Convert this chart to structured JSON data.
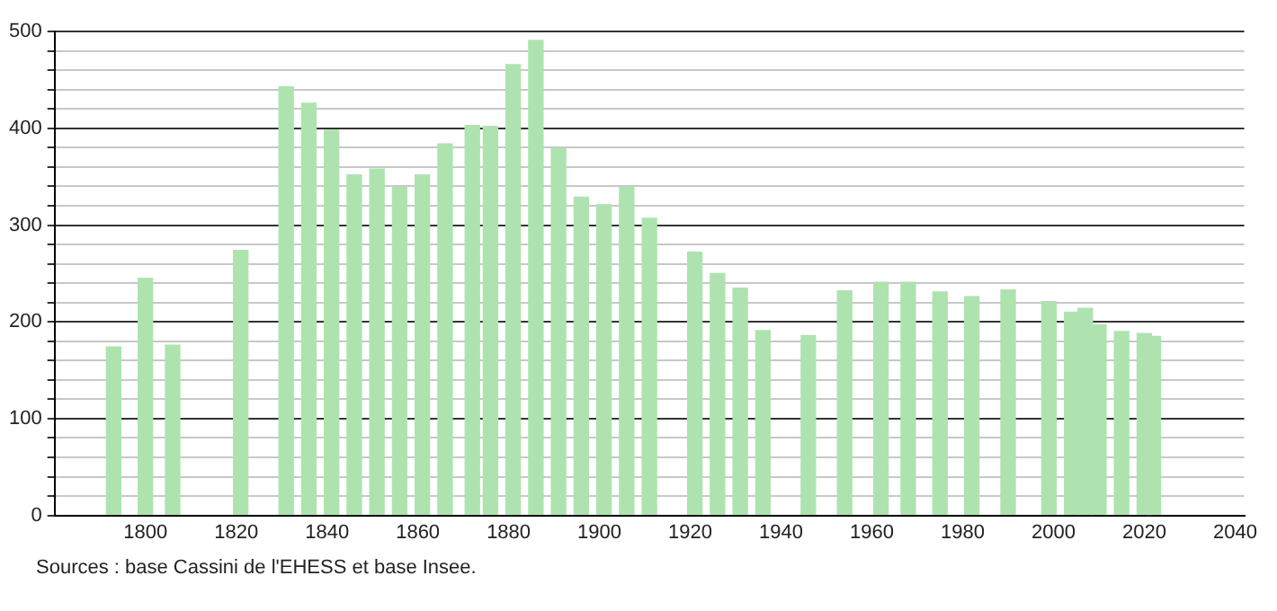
{
  "chart_data": {
    "type": "bar",
    "x": [
      1793,
      1800,
      1806,
      1821,
      1831,
      1836,
      1841,
      1846,
      1851,
      1856,
      1861,
      1866,
      1872,
      1876,
      1881,
      1886,
      1891,
      1896,
      1901,
      1906,
      1911,
      1921,
      1926,
      1931,
      1936,
      1946,
      1954,
      1962,
      1968,
      1975,
      1982,
      1990,
      1999,
      2004,
      2007,
      2010,
      2015,
      2020,
      2022
    ],
    "values": [
      174,
      245,
      176,
      274,
      443,
      426,
      398,
      352,
      358,
      339,
      352,
      384,
      403,
      402,
      466,
      491,
      379,
      329,
      321,
      339,
      307,
      272,
      250,
      235,
      191,
      186,
      232,
      241,
      241,
      231,
      226,
      233,
      221,
      210,
      214,
      197,
      190,
      188,
      185
    ],
    "color": "#aee3b0",
    "xlim": [
      1780,
      2042
    ],
    "xticks": [
      1800,
      1820,
      1840,
      1860,
      1880,
      1900,
      1920,
      1940,
      1960,
      1980,
      2000,
      2020,
      2040
    ],
    "ylim": [
      0,
      500
    ],
    "yticks": [
      0,
      {
        "value": 20,
        "label": null
      },
      {
        "value": 40,
        "label": null
      },
      {
        "value": 60,
        "label": null
      },
      {
        "value": 80,
        "label": null
      },
      100,
      {
        "value": 120,
        "label": null
      },
      {
        "value": 140,
        "label": null
      },
      {
        "value": 160,
        "label": null
      },
      {
        "value": 180,
        "label": null
      },
      200,
      {
        "value": 220,
        "label": null
      },
      {
        "value": 240,
        "label": null
      },
      {
        "value": 260,
        "label": null
      },
      {
        "value": 280,
        "label": null
      },
      300,
      {
        "value": 320,
        "label": null
      },
      {
        "value": 340,
        "label": null
      },
      {
        "value": 360,
        "label": null
      },
      {
        "value": 380,
        "label": null
      },
      400,
      {
        "value": 420,
        "label": null
      },
      {
        "value": 440,
        "label": null
      },
      {
        "value": 460,
        "label": null
      },
      {
        "value": 480,
        "label": null
      },
      500
    ],
    "grid": "y",
    "annotations": [
      "Sources : base Cassini de l'EHESS et base Insee."
    ]
  }
}
